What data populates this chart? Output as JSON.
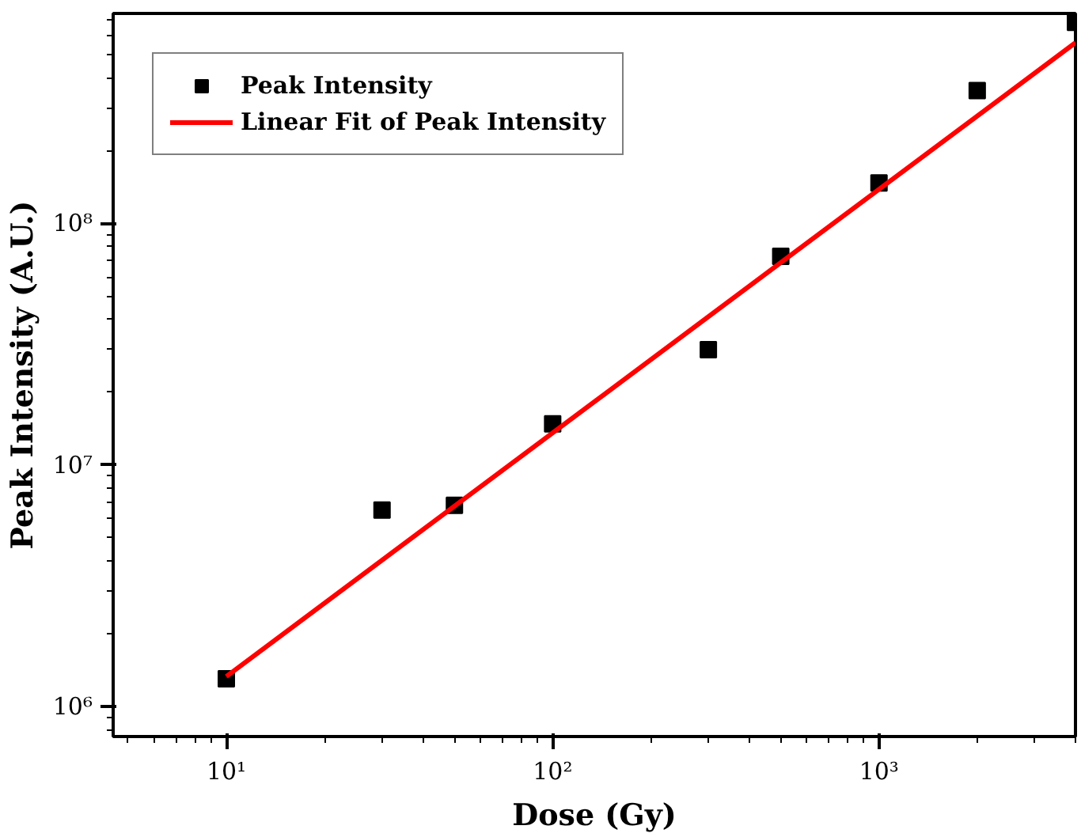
{
  "chart_data": {
    "type": "scatter",
    "xlabel": "Dose (Gy)",
    "ylabel": "Peak Intensity (A.U.)",
    "log": "xy",
    "grid": false,
    "legend": "top left",
    "xlim": [
      4.5,
      4000
    ],
    "ylim": [
      750000,
      740000000
    ],
    "xticks": [
      {
        "value": 10,
        "label": "10¹"
      },
      {
        "value": 100,
        "label": "10²"
      },
      {
        "value": 1000,
        "label": "10³"
      }
    ],
    "yticks": [
      {
        "value": 1000000,
        "label": "10⁶"
      },
      {
        "value": 10000000,
        "label": "10⁷"
      },
      {
        "value": 100000000,
        "label": "10⁸"
      }
    ],
    "series": [
      {
        "name": "Peak Intensity",
        "marker": "square",
        "color": "#000000",
        "x": [
          10,
          30,
          50,
          100,
          300,
          500,
          1000,
          2000,
          4000
        ],
        "values": [
          1300000,
          6500000,
          6800000,
          14800000,
          30000000,
          73000000,
          147000000,
          355000000,
          680000000
        ]
      },
      {
        "name": "Linear Fit of Peak Intensity",
        "type": "line",
        "color": "#ff0000",
        "line_style": "solid",
        "x": [
          10,
          4000
        ],
        "values": [
          1330000,
          560000000
        ]
      }
    ]
  }
}
